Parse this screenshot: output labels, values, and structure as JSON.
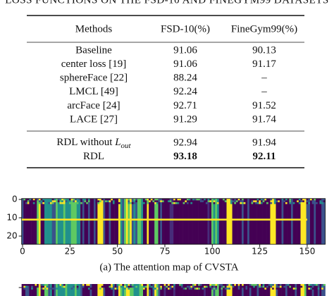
{
  "caption_top": "LOSS FUNCTIONS ON THE FSD-10 AND FINEGYM99 DATASETS",
  "table": {
    "header": [
      "Methods",
      "FSD-10(%)",
      "FineGym99(%)"
    ],
    "groups": [
      [
        [
          "Baseline",
          "91.06",
          "90.13"
        ],
        [
          "center loss [19]",
          "91.06",
          "91.17"
        ],
        [
          "sphereFace [22]",
          "88.24",
          "–"
        ],
        [
          "LMCL [49]",
          "92.24",
          "–"
        ],
        [
          "arcFace [24]",
          "92.71",
          "91.52"
        ],
        [
          "LACE [27]",
          "91.29",
          "91.74"
        ]
      ],
      [
        [
          {
            "text": "RDL without",
            "symbol": "L",
            "subscript": "out"
          },
          "92.94",
          "91.94"
        ],
        [
          "RDL",
          {
            "text": "93.18",
            "bold": true
          },
          {
            "text": "92.11",
            "bold": true
          }
        ]
      ]
    ]
  },
  "figure": {
    "xticks": [
      0,
      25,
      50,
      75,
      100,
      125,
      150
    ],
    "yticks": [
      0,
      10,
      20
    ],
    "caption": "(a) The attention map of CVSTA"
  }
}
